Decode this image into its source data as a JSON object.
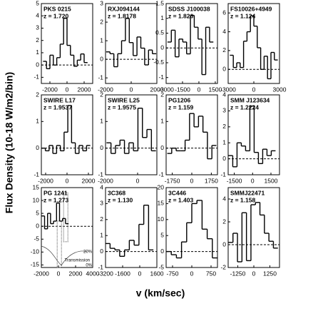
{
  "ylabel": "Flux Density (10-18 W/m2/bin)",
  "xlabel": "v (km/sec)",
  "chart_data": [
    {
      "type": "step",
      "title": "PKS 0215",
      "subtitle": "z = 1.720",
      "x": [
        -2600,
        -2200,
        -1800,
        -1400,
        -1000,
        -600,
        -200,
        200,
        600,
        1000,
        1400,
        1800,
        2200
      ],
      "values": [
        0.3,
        -0.3,
        0.8,
        0.0,
        0.6,
        1.7,
        3.8,
        1.6,
        0.8,
        -0.1,
        0.4,
        0.9,
        0.2
      ],
      "xlim": [
        -3000,
        3000
      ],
      "xticks": [
        -2000,
        0,
        2000
      ],
      "ylim": [
        -1.5,
        5
      ],
      "yticks": [
        -1,
        0,
        1,
        2,
        3,
        4,
        5
      ],
      "zero_line": true
    },
    {
      "type": "step",
      "title": "RXJ094144",
      "subtitle": "z = 1.8178",
      "x": [
        -1800,
        -1500,
        -1200,
        -900,
        -600,
        -300,
        0,
        300,
        600,
        900,
        1200,
        1500,
        1800
      ],
      "values": [
        0.4,
        0.3,
        -0.4,
        0.3,
        1.0,
        2.2,
        0.9,
        0.2,
        1.2,
        0.6,
        -0.3,
        0.5,
        0.3
      ],
      "xlim": [
        -2000,
        2000
      ],
      "xticks": [
        -2000,
        0,
        2000
      ],
      "ylim": [
        -1.3,
        3
      ],
      "yticks": [
        -1,
        0,
        1,
        2,
        3
      ],
      "zero_line": true
    },
    {
      "type": "step",
      "title": "SDSS J100038",
      "subtitle": "z = 1.826",
      "x": [
        -2700,
        -2350,
        -2000,
        -1650,
        -1300,
        -950,
        -600,
        -250,
        100,
        450,
        800,
        1150
      ],
      "values": [
        0.2,
        0.6,
        -0.3,
        0.3,
        0.2,
        -0.2,
        1.1,
        0.7,
        0.3,
        -0.9,
        0.7,
        0.2
      ],
      "xlim": [
        -3000,
        1700
      ],
      "xticks": [
        -3000,
        -1500,
        0,
        1500
      ],
      "ylim": [
        -1.2,
        1.5
      ],
      "yticks": [
        -1,
        -0.5,
        0,
        0.5,
        1,
        1.5
      ],
      "zero_line": true
    },
    {
      "type": "step",
      "title": "FS10026+4949",
      "subtitle": "z = 1.124",
      "x": [
        -2600,
        -2200,
        -1800,
        -1400,
        -1000,
        -600,
        -200,
        200,
        600,
        1000,
        1400,
        1800,
        2200,
        2600
      ],
      "values": [
        1.5,
        0.2,
        0.7,
        0.2,
        3.0,
        4.0,
        5.7,
        4.6,
        2.3,
        0.0,
        1.4,
        -1.0,
        1.8,
        1.0
      ],
      "xlim": [
        -3000,
        3000
      ],
      "xticks": [
        -3000,
        0,
        3000
      ],
      "ylim": [
        -1.5,
        7
      ],
      "yticks": [
        0,
        2,
        4,
        6
      ],
      "zero_line": true
    },
    {
      "type": "step",
      "title": "SWIRE L17",
      "subtitle": "z = 1.9537",
      "x": [
        -2200,
        -1850,
        -1500,
        -1150,
        -800,
        -450,
        -100,
        250,
        600,
        950,
        1300,
        1650,
        2000
      ],
      "values": [
        0,
        -0.1,
        0.1,
        -0.2,
        0.1,
        -0.1,
        0.6,
        1.6,
        0.2,
        -0.2,
        0.1,
        -0.1,
        0.1
      ],
      "xlim": [
        -2400,
        2400
      ],
      "xticks": [
        -2000,
        0,
        2000
      ],
      "ylim": [
        -1,
        2
      ],
      "yticks": [
        -1,
        0,
        1,
        2
      ],
      "zero_line": true
    },
    {
      "type": "step",
      "title": "SWIRE L25",
      "subtitle": "z = 1.9575",
      "x": [
        -1800,
        -1520,
        -1240,
        -960,
        -680,
        -400,
        -120,
        160,
        440,
        720,
        1000
      ],
      "values": [
        0.2,
        -0.2,
        0.1,
        0.3,
        -0.2,
        0.2,
        -0.1,
        1.5,
        0.4,
        0.7,
        -0.1
      ],
      "xlim": [
        -2000,
        1200
      ],
      "xticks": [
        -2000,
        0
      ],
      "ylim": [
        -1,
        2
      ],
      "yticks": [
        -1,
        0,
        1,
        2
      ],
      "zero_line": true
    },
    {
      "type": "step",
      "title": "PG1206",
      "subtitle": "z = 1.159",
      "x": [
        -2000,
        -1600,
        -1200,
        -800,
        -400,
        0,
        400,
        800,
        1200,
        1600,
        2000
      ],
      "values": [
        -0.2,
        0,
        -0.1,
        -0.1,
        0.3,
        1.3,
        0.8,
        1.2,
        0.6,
        -0.4,
        0.1
      ],
      "xlim": [
        -2300,
        2300
      ],
      "xticks": [
        -1750,
        0,
        1750
      ],
      "ylim": [
        -1,
        2
      ],
      "yticks": [
        -1,
        0,
        1,
        2
      ],
      "zero_line": true
    },
    {
      "type": "step",
      "title": "SMM J123634",
      "subtitle": "z = 1.2224",
      "x": [
        -1800,
        -1450,
        -1100,
        -750,
        -400,
        -50,
        300,
        650,
        1000,
        1350,
        1700
      ],
      "values": [
        0.2,
        -0.5,
        1.0,
        0.8,
        0.5,
        3.3,
        0.4,
        -0.3,
        0.6,
        0.2,
        0.5
      ],
      "xlim": [
        -2000,
        2200
      ],
      "xticks": [
        -1500,
        0,
        1500
      ],
      "ylim": [
        -1,
        4
      ],
      "yticks": [
        -1,
        0,
        1,
        2,
        3,
        4
      ],
      "zero_line": true
    },
    {
      "type": "step",
      "title": "PG 1241",
      "subtitle": "z = 1.273",
      "x": [
        -1800,
        -1450,
        -1100,
        -750,
        -400,
        -50,
        300,
        650,
        1000
      ],
      "values": [
        4,
        -1,
        5,
        1,
        2,
        9,
        2,
        3,
        1
      ],
      "xlim": [
        -2000,
        4000
      ],
      "xticks": [
        -2000,
        0,
        2000,
        4000
      ],
      "ylim": [
        -16,
        15
      ],
      "yticks": [
        -15,
        -10,
        -5,
        0,
        5,
        10,
        15
      ],
      "zero_line": true,
      "annotations": [
        "20%",
        "Transmission",
        "0%"
      ]
    },
    {
      "type": "step",
      "title": "3C368",
      "subtitle": "z = 1.130",
      "x": [
        -3000,
        -2550,
        -2100,
        -1650,
        -1200,
        -750,
        -300,
        150,
        600,
        1050
      ],
      "values": [
        0.5,
        0.2,
        0.1,
        -0.3,
        0.1,
        0.7,
        0.4,
        1.7,
        2.9,
        0.1
      ],
      "xlim": [
        -3200,
        1600
      ],
      "xticks": [
        -3200,
        -1600,
        0,
        1600
      ],
      "ylim": [
        -1,
        4
      ],
      "yticks": [
        -1,
        0,
        1,
        2,
        3,
        4
      ],
      "zero_line": true
    },
    {
      "type": "step",
      "title": "3C446",
      "subtitle": "z = 1.403",
      "x": [
        -900,
        -700,
        -500,
        -300,
        -100,
        100,
        300,
        500,
        700,
        900
      ],
      "values": [
        0,
        -1,
        -2,
        3,
        9,
        15,
        16,
        7,
        4,
        -2
      ],
      "xlim": [
        -1000,
        1000
      ],
      "xticks": [
        -750,
        0,
        750
      ],
      "ylim": [
        -5,
        20
      ],
      "yticks": [
        -5,
        0,
        5,
        10,
        15,
        20
      ],
      "zero_line": true
    },
    {
      "type": "step",
      "title": "SMMJ22471",
      "subtitle": "z = 1.158",
      "x": [
        -1800,
        -1450,
        -1100,
        -750,
        -400,
        -50,
        300,
        650,
        1000,
        1350,
        1700
      ],
      "values": [
        0.2,
        1.0,
        -1.5,
        2.8,
        -1.4,
        3.5,
        3.7,
        2.6,
        1.0,
        0.3,
        -0.3
      ],
      "xlim": [
        -2000,
        2000
      ],
      "xticks": [
        -1250,
        0,
        1250
      ],
      "ylim": [
        -2,
        5
      ],
      "yticks": [
        -2,
        0,
        2,
        4
      ],
      "zero_line": true
    }
  ]
}
